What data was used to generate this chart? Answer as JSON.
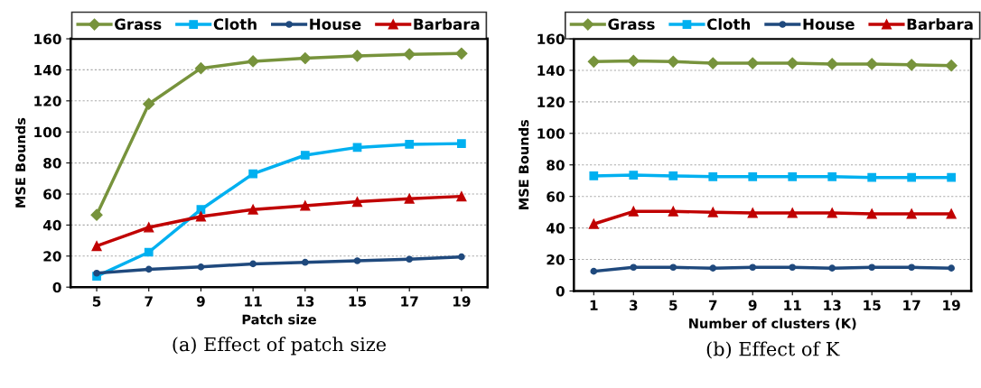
{
  "chart_data": [
    {
      "type": "line",
      "title": "(a) Effect of patch size",
      "xlabel": "Patch size",
      "ylabel": "MSE Bounds",
      "categories": [
        "5",
        "7",
        "9",
        "11",
        "13",
        "15",
        "17",
        "19"
      ],
      "series": [
        {
          "name": "Grass",
          "color": "#77933c",
          "marker": "diamond",
          "values": [
            46.5,
            118,
            141,
            145.5,
            147.5,
            149,
            150,
            150.5
          ]
        },
        {
          "name": "Cloth",
          "color": "#00b0f0",
          "marker": "square",
          "values": [
            7,
            22.5,
            50,
            73,
            85,
            90,
            92,
            92.5
          ]
        },
        {
          "name": "House",
          "color": "#1f497d",
          "marker": "circle",
          "values": [
            9,
            11.5,
            13,
            15,
            16,
            17,
            18,
            19.5
          ]
        },
        {
          "name": "Barbara",
          "color": "#c00000",
          "marker": "triangle",
          "values": [
            26.5,
            38.5,
            45.5,
            50,
            52.5,
            55,
            57,
            58.5
          ]
        }
      ],
      "ylim": [
        0,
        160
      ],
      "yticks": [
        0,
        20,
        40,
        60,
        80,
        100,
        120,
        140,
        160
      ],
      "grid": "y",
      "legend": "top"
    },
    {
      "type": "line",
      "title": "(b) Effect of K",
      "xlabel": "Number of clusters (K)",
      "ylabel": "MSE Bounds",
      "categories": [
        "1",
        "3",
        "5",
        "7",
        "9",
        "11",
        "13",
        "15",
        "17",
        "19"
      ],
      "series": [
        {
          "name": "Grass",
          "color": "#77933c",
          "marker": "diamond",
          "values": [
            145.5,
            146,
            145.5,
            144.5,
            144.5,
            144.5,
            144,
            144,
            143.5,
            143
          ]
        },
        {
          "name": "Cloth",
          "color": "#00b0f0",
          "marker": "square",
          "values": [
            73,
            73.5,
            73,
            72.5,
            72.5,
            72.5,
            72.5,
            72,
            72,
            72
          ]
        },
        {
          "name": "House",
          "color": "#1f497d",
          "marker": "circle",
          "values": [
            12.5,
            15,
            15,
            14.5,
            15,
            15,
            14.5,
            15,
            15,
            14.5
          ]
        },
        {
          "name": "Barbara",
          "color": "#c00000",
          "marker": "triangle",
          "values": [
            42.5,
            50.5,
            50.5,
            50,
            49.5,
            49.5,
            49.5,
            49,
            49,
            49
          ]
        }
      ],
      "ylim": [
        0,
        160
      ],
      "yticks": [
        0,
        20,
        40,
        60,
        80,
        100,
        120,
        140,
        160
      ],
      "grid": "y",
      "legend": "top"
    }
  ]
}
